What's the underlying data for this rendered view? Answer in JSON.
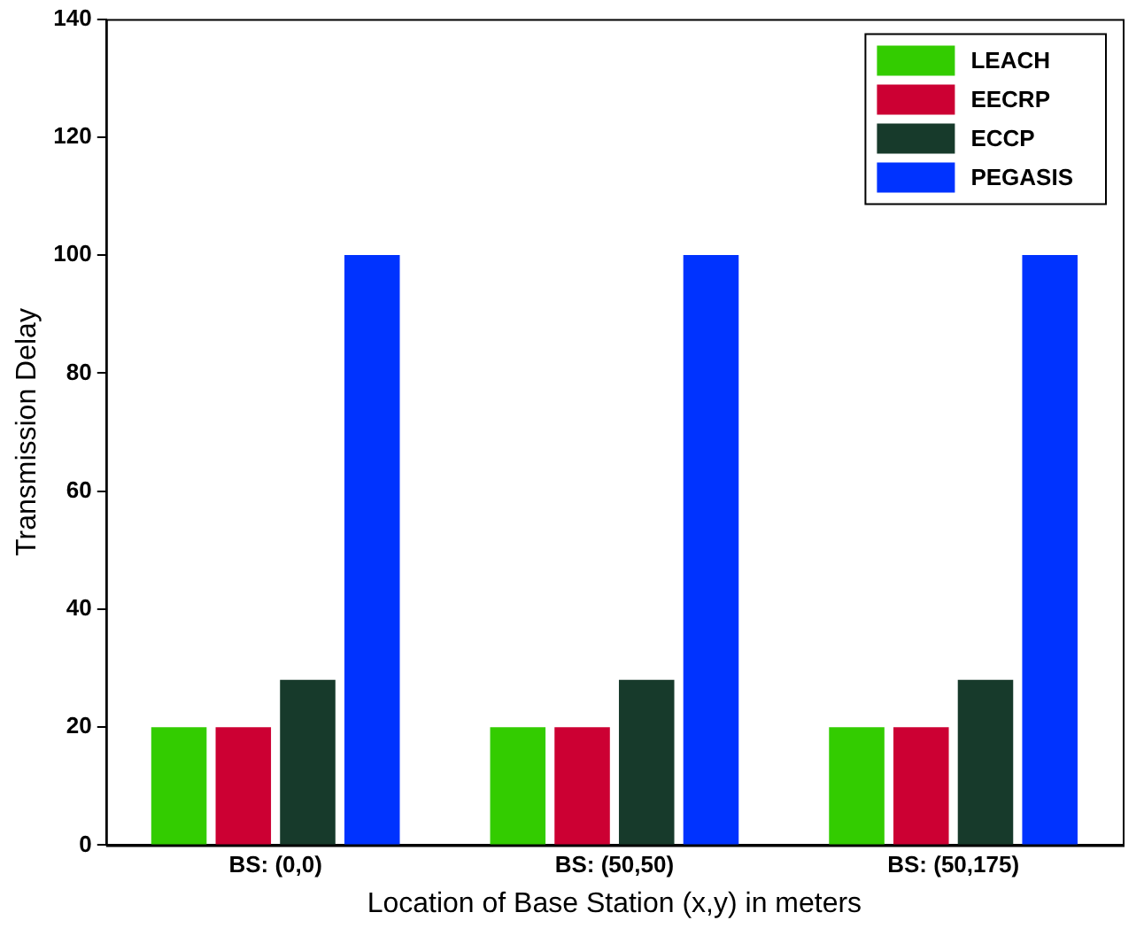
{
  "chart_data": {
    "type": "bar",
    "xlabel": "Location of Base Station (x,y) in meters",
    "ylabel": "Transmission Delay",
    "categories": [
      "BS: (0,0)",
      "BS: (50,50)",
      "BS: (50,175)"
    ],
    "series": [
      {
        "name": "LEACH",
        "color": "#33cc00",
        "values": [
          20,
          20,
          20
        ]
      },
      {
        "name": "EECRP",
        "color": "#cc0033",
        "values": [
          20,
          20,
          20
        ]
      },
      {
        "name": "ECCP",
        "color": "#173a2b",
        "values": [
          28,
          28,
          28
        ]
      },
      {
        "name": "PEGASIS",
        "color": "#0033ff",
        "values": [
          100,
          100,
          100
        ]
      }
    ],
    "ylim": [
      0,
      140
    ],
    "yticks": [
      0,
      20,
      40,
      60,
      80,
      100,
      120,
      140
    ],
    "grid": false,
    "legend": "top right"
  }
}
